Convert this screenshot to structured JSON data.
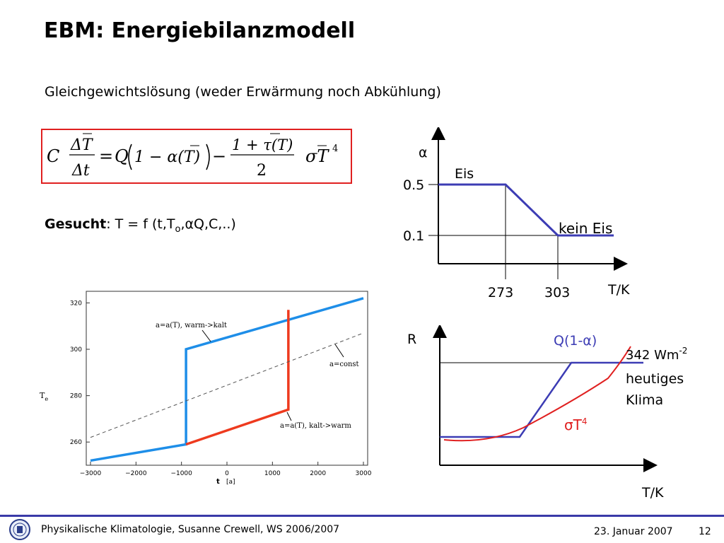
{
  "slide": {
    "title": "EBM: Energiebilanzmodell",
    "subtitle": "Gleichgewichtslösung (weder Erwärmung noch Abkühlung)",
    "formula": {
      "C": "C",
      "delta_T": "ΔT",
      "delta_t": "Δt",
      "equals": "=",
      "Q": "Q",
      "one_minus_alpha": "1 − α(T)",
      "minus": "−",
      "numerator": "1 + τ(T)",
      "denominator": "2",
      "sigma_T": "σT",
      "exponent": "4"
    },
    "gesucht": {
      "label": "Gesucht",
      "text": ": T = f (t,T",
      "sub": "o",
      "rest": ",αQ,C,..)"
    }
  },
  "alpha_chart": {
    "ylabel": "α",
    "xlabel": "T/K",
    "tick_05": "0.5",
    "tick_01": "0.1",
    "tick_273": "273",
    "tick_303": "303",
    "label_eis": "Eis",
    "label_kein_eis": "kein Eis",
    "color": "#3c3cb4"
  },
  "r_chart": {
    "ylabel": "R",
    "xlabel": "T/K",
    "label_q": "Q(1-α)",
    "label_sigma": "σT",
    "label_sigma_exp": "4",
    "label_342": "342 Wm",
    "label_342_exp": "-2",
    "label_heutiges": "heutiges",
    "label_klima": "Klima",
    "color_q": "#3c3cb4",
    "color_sigma": "#e02020"
  },
  "hysteresis_chart": {
    "ylabel": "T",
    "ylabel_sub": "e",
    "xlabel": "t",
    "xunit": "[a]",
    "y_ticks": [
      "320",
      "300",
      "280",
      "260"
    ],
    "x_ticks": [
      "−3000",
      "−2000",
      "−1000",
      "0",
      "1000",
      "2000",
      "3000"
    ],
    "annot_warm": "a=a(T), warm->kalt",
    "annot_const": "a=const",
    "annot_kalt": "a=a(T), kalt->warm",
    "color_blue": "#1e8ee8",
    "color_red": "#ee3a1e"
  },
  "chart_data": {
    "type": "line",
    "xlabel": "t [a]",
    "ylabel": "Te",
    "x_range": [
      -3000,
      3000
    ],
    "y_range": [
      250,
      325
    ],
    "series": [
      {
        "name": "a=a(T), warm->kalt",
        "x": [
          -3000,
          -900,
          -900,
          3000
        ],
        "y": [
          252,
          259,
          300,
          322
        ]
      },
      {
        "name": "a=a(T), kalt->warm",
        "x": [
          -900,
          1350,
          1350
        ],
        "y": [
          259,
          274,
          317
        ]
      },
      {
        "name": "a=const",
        "x": [
          -3000,
          3000
        ],
        "y": [
          262,
          307
        ]
      }
    ]
  },
  "footer": {
    "text": "Physikalische Klimatologie, Susanne Crewell,  WS 2006/2007",
    "date": "23. Januar 2007",
    "page": "12"
  }
}
